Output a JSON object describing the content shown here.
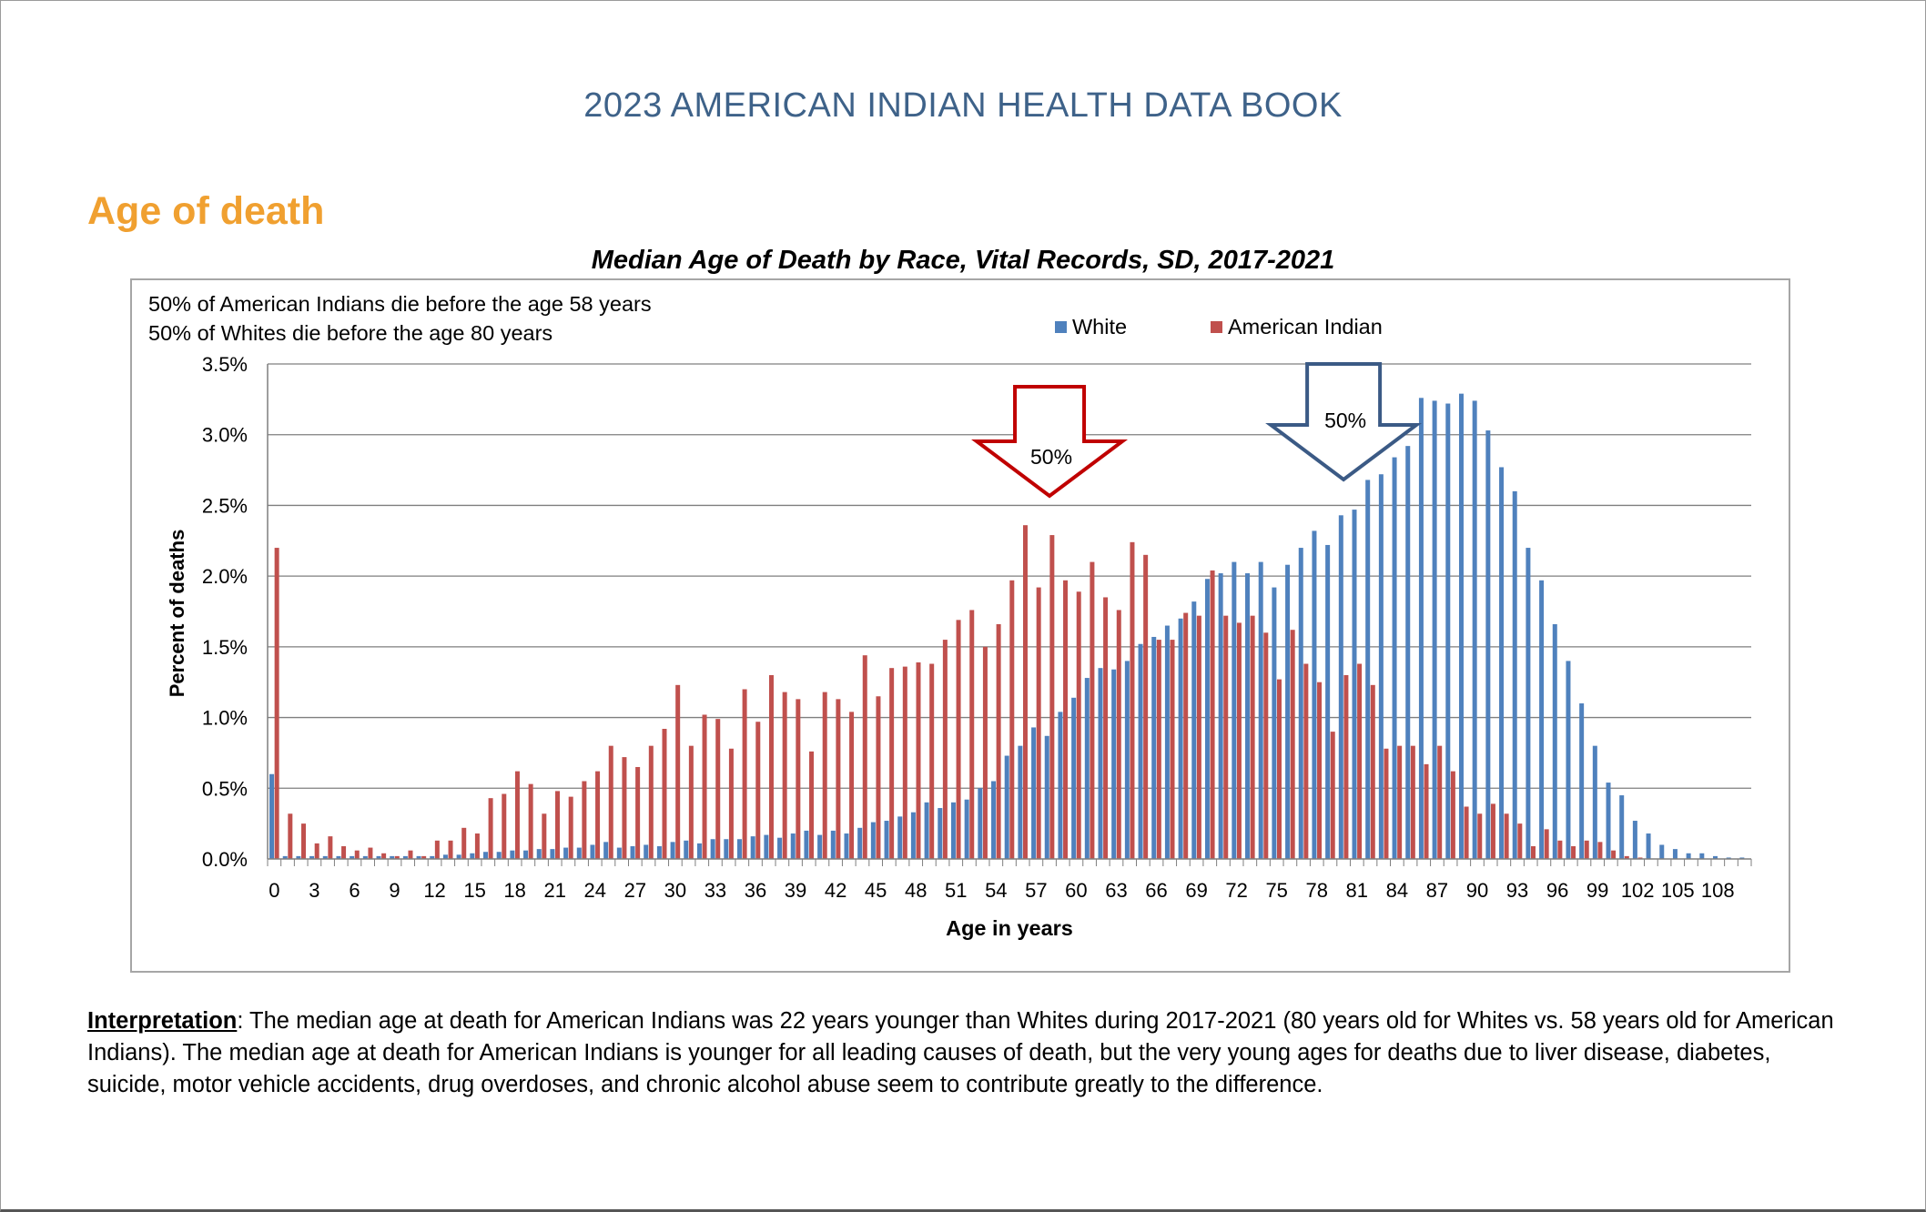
{
  "document": {
    "header": "2023 AMERICAN INDIAN HEALTH DATA BOOK",
    "section_title": "Age of death",
    "interpretation_label": "Interpretation",
    "interpretation_text": ":  The median age at death for American Indians was 22 years younger than Whites during 2017-2021 (80 years old for Whites vs. 58 years old for American Indians). The median age at death for American Indians is younger for all leading causes of death, but the very young ages for deaths due to liver disease, diabetes, suicide, motor vehicle accidents, drug overdoses, and chronic alcohol abuse seem to contribute greatly to the difference."
  },
  "chart_data": {
    "type": "bar",
    "title": "Median Age of Death by Race, Vital Records, SD, 2017-2021",
    "xlabel": "Age in years",
    "ylabel": "Percent of deaths",
    "ylim": [
      0,
      3.5
    ],
    "yticks": [
      "0.0%",
      "0.5%",
      "1.0%",
      "1.5%",
      "2.0%",
      "2.5%",
      "3.0%",
      "3.5%"
    ],
    "xticks": [
      "0",
      "3",
      "6",
      "9",
      "12",
      "15",
      "18",
      "21",
      "24",
      "27",
      "30",
      "33",
      "36",
      "39",
      "42",
      "45",
      "48",
      "51",
      "54",
      "57",
      "60",
      "63",
      "66",
      "69",
      "72",
      "75",
      "78",
      "81",
      "84",
      "87",
      "90",
      "93",
      "96",
      "99",
      "102",
      "105",
      "108"
    ],
    "grid": true,
    "legend_position": "top-right",
    "notes": [
      "50% of American Indians die before the age 58 years",
      "50% of Whites die before the age 80 years"
    ],
    "annotations": [
      {
        "label": "50%",
        "series": "American Indian",
        "age": 58
      },
      {
        "label": "50%",
        "series": "White",
        "age": 80
      }
    ],
    "categories": [
      0,
      1,
      2,
      3,
      4,
      5,
      6,
      7,
      8,
      9,
      10,
      11,
      12,
      13,
      14,
      15,
      16,
      17,
      18,
      19,
      20,
      21,
      22,
      23,
      24,
      25,
      26,
      27,
      28,
      29,
      30,
      31,
      32,
      33,
      34,
      35,
      36,
      37,
      38,
      39,
      40,
      41,
      42,
      43,
      44,
      45,
      46,
      47,
      48,
      49,
      50,
      51,
      52,
      53,
      54,
      55,
      56,
      57,
      58,
      59,
      60,
      61,
      62,
      63,
      64,
      65,
      66,
      67,
      68,
      69,
      70,
      71,
      72,
      73,
      74,
      75,
      76,
      77,
      78,
      79,
      80,
      81,
      82,
      83,
      84,
      85,
      86,
      87,
      88,
      89,
      90,
      91,
      92,
      93,
      94,
      95,
      96,
      97,
      98,
      99,
      100,
      101,
      102,
      103,
      104,
      105,
      106,
      107,
      108,
      109,
      110
    ],
    "series": [
      {
        "name": "White",
        "color": "#4f81bd",
        "values": [
          0.6,
          0.02,
          0.02,
          0.02,
          0.02,
          0.02,
          0.02,
          0.02,
          0.02,
          0.02,
          0.02,
          0.02,
          0.02,
          0.03,
          0.03,
          0.04,
          0.05,
          0.05,
          0.06,
          0.06,
          0.07,
          0.07,
          0.08,
          0.08,
          0.1,
          0.12,
          0.08,
          0.09,
          0.1,
          0.09,
          0.12,
          0.13,
          0.11,
          0.14,
          0.14,
          0.14,
          0.16,
          0.17,
          0.15,
          0.18,
          0.2,
          0.17,
          0.2,
          0.18,
          0.22,
          0.26,
          0.27,
          0.3,
          0.33,
          0.4,
          0.36,
          0.4,
          0.42,
          0.5,
          0.55,
          0.73,
          0.8,
          0.93,
          0.87,
          1.04,
          1.14,
          1.28,
          1.35,
          1.34,
          1.4,
          1.52,
          1.57,
          1.65,
          1.7,
          1.82,
          1.98,
          2.02,
          2.1,
          2.02,
          2.1,
          1.92,
          2.08,
          2.2,
          2.32,
          2.22,
          2.43,
          2.47,
          2.68,
          2.72,
          2.84,
          2.92,
          3.26,
          3.24,
          3.22,
          3.29,
          3.24,
          3.03,
          2.77,
          2.6,
          2.2,
          1.97,
          1.66,
          1.4,
          1.1,
          0.8,
          0.54,
          0.45,
          0.27,
          0.18,
          0.1,
          0.07,
          0.04,
          0.04,
          0.02,
          0.01,
          0.01
        ]
      },
      {
        "name": "American Indian",
        "color": "#c0504d",
        "values": [
          2.2,
          0.32,
          0.25,
          0.11,
          0.16,
          0.09,
          0.06,
          0.08,
          0.04,
          0.02,
          0.06,
          0.02,
          0.13,
          0.13,
          0.22,
          0.18,
          0.43,
          0.46,
          0.62,
          0.53,
          0.32,
          0.48,
          0.44,
          0.55,
          0.62,
          0.8,
          0.72,
          0.65,
          0.8,
          0.92,
          1.23,
          0.8,
          1.02,
          0.99,
          0.78,
          1.2,
          0.97,
          1.3,
          1.18,
          1.13,
          0.76,
          1.18,
          1.13,
          1.04,
          1.44,
          1.15,
          1.35,
          1.36,
          1.39,
          1.38,
          1.55,
          1.69,
          1.76,
          1.5,
          1.66,
          1.97,
          2.36,
          1.92,
          2.29,
          1.97,
          1.89,
          2.1,
          1.85,
          1.76,
          2.24,
          2.15,
          1.55,
          1.55,
          1.74,
          1.72,
          2.04,
          1.72,
          1.67,
          1.72,
          1.6,
          1.27,
          1.62,
          1.38,
          1.25,
          0.9,
          1.3,
          1.38,
          1.23,
          0.78,
          0.8,
          0.8,
          0.67,
          0.8,
          0.62,
          0.37,
          0.32,
          0.39,
          0.32,
          0.25,
          0.09,
          0.21,
          0.13,
          0.09,
          0.13,
          0.12,
          0.06,
          0.02,
          0.01,
          0.0,
          0.0,
          0.0,
          0.0,
          0.0,
          0.0,
          0.0,
          0.0
        ]
      }
    ]
  }
}
